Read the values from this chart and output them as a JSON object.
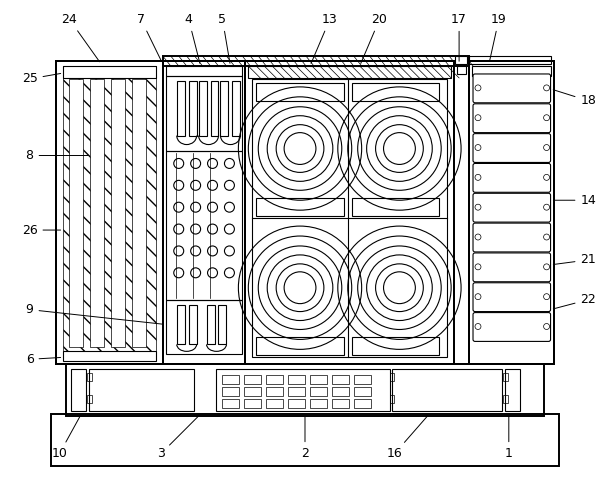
{
  "fig_width": 6.08,
  "fig_height": 4.8,
  "dpi": 100,
  "bg_color": "#ffffff",
  "line_color": "#000000",
  "lw": 0.8,
  "lw2": 1.4
}
